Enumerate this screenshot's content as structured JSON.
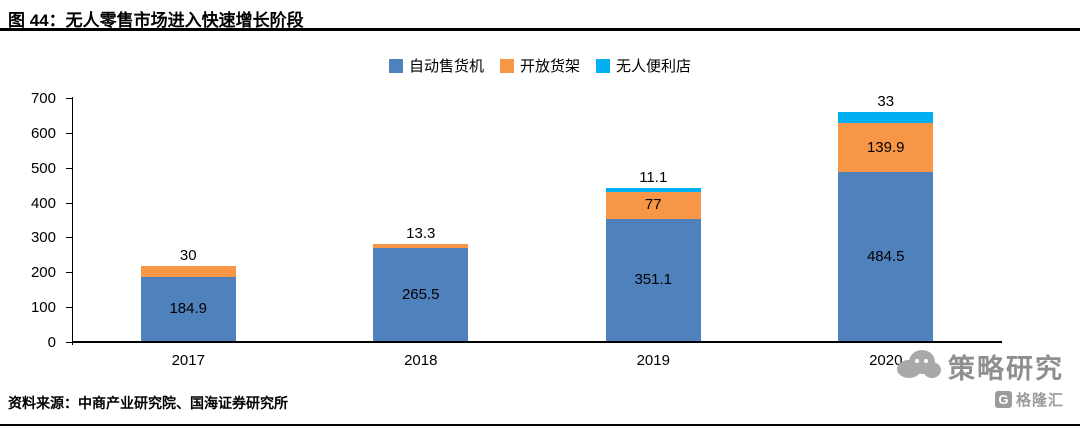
{
  "header": {
    "title": "图 44：无人零售市场进入快速增长阶段"
  },
  "footer": {
    "source": "资料来源：中商产业研究院、国海证券研究所"
  },
  "watermark": {
    "text": "策略研究",
    "logo_letter": "G",
    "logo_text": "格隆汇"
  },
  "colors": {
    "axis": "#000000",
    "blue": "#4f81bd",
    "orange": "#f79646",
    "cyan": "#00b0f0"
  },
  "chart_data": {
    "type": "bar",
    "stacked": true,
    "title": "无人零售市场进入快速增长阶段",
    "categories": [
      "2017",
      "2018",
      "2019",
      "2020"
    ],
    "series": [
      {
        "name": "自动售货机",
        "key": "vending-machine",
        "color": "#4f81bd",
        "values": [
          184.9,
          265.5,
          351.1,
          484.5
        ]
      },
      {
        "name": "开放货架",
        "key": "open-shelf",
        "color": "#f79646",
        "values": [
          30,
          13.3,
          77,
          139.9
        ]
      },
      {
        "name": "无人便利店",
        "key": "unmanned-store",
        "color": "#00b0f0",
        "values": [
          0,
          0,
          11.1,
          33
        ]
      }
    ],
    "xlabel": "",
    "ylabel": "",
    "ylim": [
      0,
      700
    ],
    "yticks": [
      0,
      100,
      200,
      300,
      400,
      500,
      600,
      700
    ],
    "legend_position": "top",
    "grid": false
  }
}
